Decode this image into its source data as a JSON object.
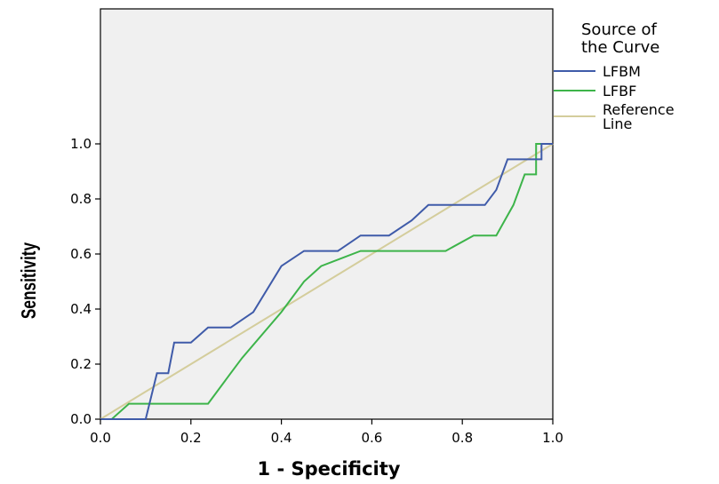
{
  "chart_data": {
    "type": "line",
    "xlabel": "1 - Specificity",
    "ylabel": "Sensitivity",
    "xlim": [
      0,
      1
    ],
    "ylim": [
      0,
      1
    ],
    "x_ticks": [
      "0.0",
      "0.2",
      "0.4",
      "0.6",
      "0.8",
      "1.0"
    ],
    "y_ticks": [
      "0.0",
      "0.2",
      "0.4",
      "0.6",
      "0.8",
      "1.0"
    ],
    "legend": {
      "title": [
        "Source of",
        "the Curve"
      ],
      "position": "right"
    },
    "series": [
      {
        "name": "LFBM",
        "color": "#3f5ba9",
        "points": [
          [
            0.0,
            0.0
          ],
          [
            0.1,
            0.0
          ],
          [
            0.125,
            0.167
          ],
          [
            0.15,
            0.167
          ],
          [
            0.163,
            0.278
          ],
          [
            0.2,
            0.278
          ],
          [
            0.238,
            0.333
          ],
          [
            0.288,
            0.333
          ],
          [
            0.338,
            0.389
          ],
          [
            0.4,
            0.556
          ],
          [
            0.45,
            0.611
          ],
          [
            0.525,
            0.611
          ],
          [
            0.575,
            0.667
          ],
          [
            0.638,
            0.667
          ],
          [
            0.688,
            0.722
          ],
          [
            0.725,
            0.778
          ],
          [
            0.85,
            0.778
          ],
          [
            0.875,
            0.833
          ],
          [
            0.9,
            0.944
          ],
          [
            0.963,
            0.944
          ],
          [
            0.975,
            0.944
          ],
          [
            0.975,
            1.0
          ],
          [
            1.0,
            1.0
          ]
        ]
      },
      {
        "name": "LFBF",
        "color": "#3db44a",
        "points": [
          [
            0.0,
            0.0
          ],
          [
            0.025,
            0.0
          ],
          [
            0.063,
            0.056
          ],
          [
            0.238,
            0.056
          ],
          [
            0.288,
            0.167
          ],
          [
            0.313,
            0.222
          ],
          [
            0.4,
            0.389
          ],
          [
            0.45,
            0.5
          ],
          [
            0.488,
            0.556
          ],
          [
            0.575,
            0.611
          ],
          [
            0.763,
            0.611
          ],
          [
            0.825,
            0.667
          ],
          [
            0.875,
            0.667
          ],
          [
            0.913,
            0.778
          ],
          [
            0.938,
            0.889
          ],
          [
            0.963,
            0.889
          ],
          [
            0.963,
            1.0
          ],
          [
            1.0,
            1.0
          ]
        ]
      },
      {
        "name": "Reference Line",
        "label_lines": [
          "Reference",
          "Line"
        ],
        "color": "#d4cd9c",
        "points": [
          [
            0.0,
            0.0
          ],
          [
            1.0,
            1.0
          ]
        ]
      }
    ],
    "plot_background": "#f0f0f0",
    "grid": false
  }
}
